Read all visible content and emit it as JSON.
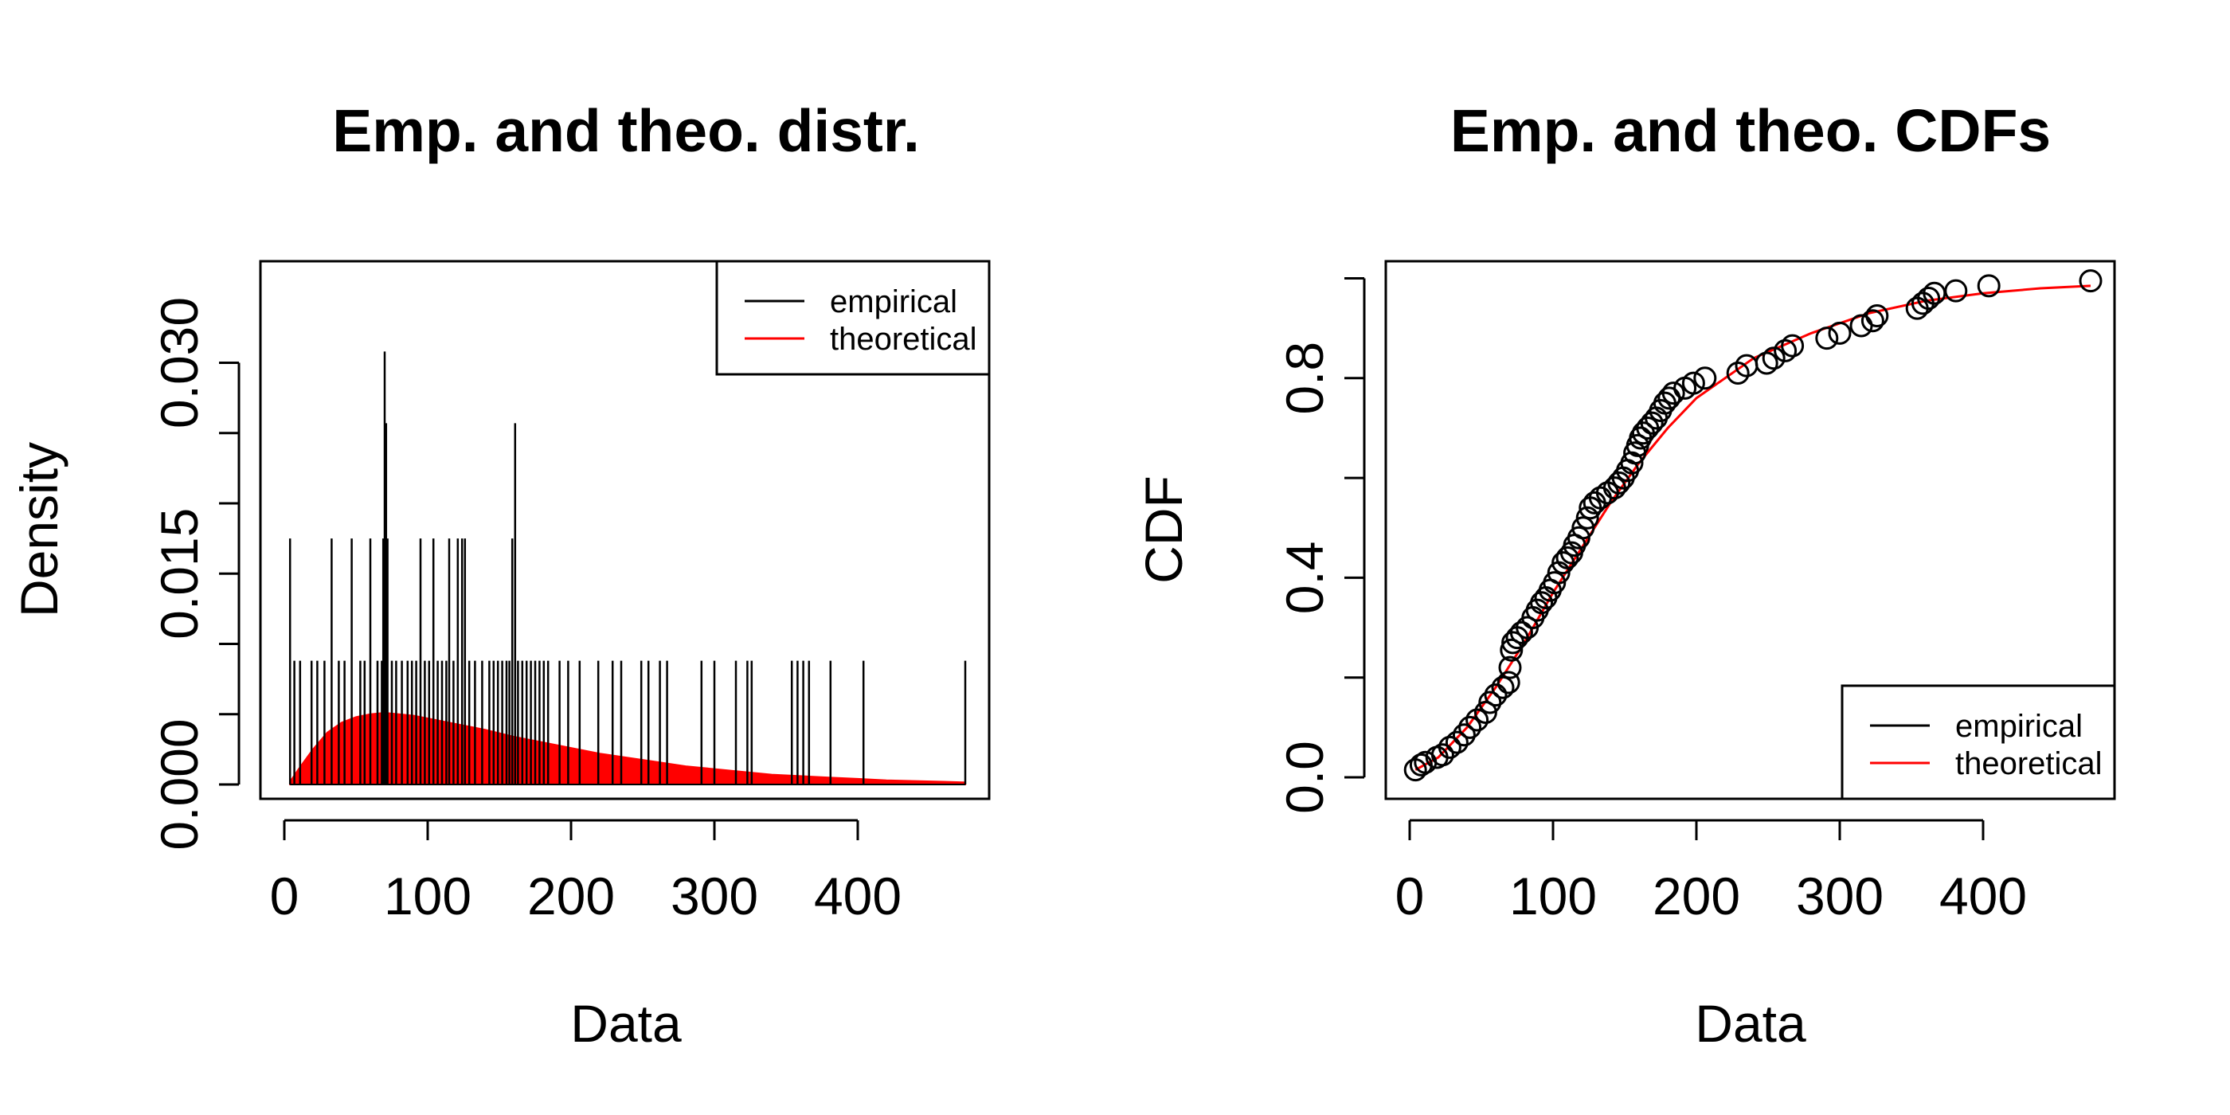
{
  "chart_data": [
    {
      "type": "histogram-density",
      "title": "Emp. and theo. distr.",
      "xlabel": "Data",
      "ylabel": "Density",
      "xlim": [
        0,
        480
      ],
      "ylim": [
        0,
        0.033
      ],
      "xticks": [
        "0",
        "100",
        "200",
        "300",
        "400"
      ],
      "xtick_values": [
        0,
        100,
        200,
        300,
        400
      ],
      "yticks": [
        "0.000",
        "0.015",
        "0.030"
      ],
      "ytick_values": [
        0,
        0.015,
        0.03
      ],
      "grid": false,
      "legend": {
        "position": "top-right",
        "entries": [
          "empirical",
          "theoretical"
        ]
      },
      "colors": {
        "empirical": "#000000",
        "theoretical": "#ff0000"
      },
      "empirical_spikes": [
        {
          "x": 4,
          "density": 0.0175
        },
        {
          "x": 7,
          "density": 0.0088
        },
        {
          "x": 11,
          "density": 0.0088
        },
        {
          "x": 19,
          "density": 0.0088
        },
        {
          "x": 23,
          "density": 0.0088
        },
        {
          "x": 28,
          "density": 0.0088
        },
        {
          "x": 33,
          "density": 0.0175
        },
        {
          "x": 38,
          "density": 0.0088
        },
        {
          "x": 42,
          "density": 0.0088
        },
        {
          "x": 47,
          "density": 0.0175
        },
        {
          "x": 53,
          "density": 0.0088
        },
        {
          "x": 56,
          "density": 0.0088
        },
        {
          "x": 60,
          "density": 0.0175
        },
        {
          "x": 65,
          "density": 0.0088
        },
        {
          "x": 68,
          "density": 0.0088
        },
        {
          "x": 69,
          "density": 0.0175
        },
        {
          "x": 70,
          "density": 0.0308
        },
        {
          "x": 71,
          "density": 0.0257
        },
        {
          "x": 72,
          "density": 0.0175
        },
        {
          "x": 75,
          "density": 0.0088
        },
        {
          "x": 78,
          "density": 0.0088
        },
        {
          "x": 82,
          "density": 0.0088
        },
        {
          "x": 86,
          "density": 0.0088
        },
        {
          "x": 89,
          "density": 0.0088
        },
        {
          "x": 92,
          "density": 0.0088
        },
        {
          "x": 95,
          "density": 0.0175
        },
        {
          "x": 98,
          "density": 0.0088
        },
        {
          "x": 101,
          "density": 0.0088
        },
        {
          "x": 104,
          "density": 0.0175
        },
        {
          "x": 107,
          "density": 0.0088
        },
        {
          "x": 110,
          "density": 0.0088
        },
        {
          "x": 113,
          "density": 0.0088
        },
        {
          "x": 115,
          "density": 0.0175
        },
        {
          "x": 118,
          "density": 0.0088
        },
        {
          "x": 121,
          "density": 0.0175
        },
        {
          "x": 124,
          "density": 0.0175
        },
        {
          "x": 126,
          "density": 0.0175
        },
        {
          "x": 129,
          "density": 0.0088
        },
        {
          "x": 133,
          "density": 0.0088
        },
        {
          "x": 138,
          "density": 0.0088
        },
        {
          "x": 143,
          "density": 0.0088
        },
        {
          "x": 146,
          "density": 0.0088
        },
        {
          "x": 149,
          "density": 0.0088
        },
        {
          "x": 152,
          "density": 0.0088
        },
        {
          "x": 155,
          "density": 0.0088
        },
        {
          "x": 157,
          "density": 0.0088
        },
        {
          "x": 159,
          "density": 0.0175
        },
        {
          "x": 161,
          "density": 0.0257
        },
        {
          "x": 163,
          "density": 0.0088
        },
        {
          "x": 166,
          "density": 0.0088
        },
        {
          "x": 169,
          "density": 0.0088
        },
        {
          "x": 172,
          "density": 0.0088
        },
        {
          "x": 175,
          "density": 0.0088
        },
        {
          "x": 178,
          "density": 0.0088
        },
        {
          "x": 181,
          "density": 0.0088
        },
        {
          "x": 184,
          "density": 0.0088
        },
        {
          "x": 192,
          "density": 0.0088
        },
        {
          "x": 198,
          "density": 0.0088
        },
        {
          "x": 206,
          "density": 0.0088
        },
        {
          "x": 219,
          "density": 0.0088
        },
        {
          "x": 229,
          "density": 0.0088
        },
        {
          "x": 235,
          "density": 0.0088
        },
        {
          "x": 249,
          "density": 0.0088
        },
        {
          "x": 254,
          "density": 0.0088
        },
        {
          "x": 262,
          "density": 0.0088
        },
        {
          "x": 267,
          "density": 0.0088
        },
        {
          "x": 291,
          "density": 0.0088
        },
        {
          "x": 300,
          "density": 0.0088
        },
        {
          "x": 315,
          "density": 0.0088
        },
        {
          "x": 323,
          "density": 0.0088
        },
        {
          "x": 326,
          "density": 0.0088
        },
        {
          "x": 354,
          "density": 0.0088
        },
        {
          "x": 358,
          "density": 0.0088
        },
        {
          "x": 362,
          "density": 0.0088
        },
        {
          "x": 366,
          "density": 0.0088
        },
        {
          "x": 381,
          "density": 0.0088
        },
        {
          "x": 404,
          "density": 0.0088
        },
        {
          "x": 475,
          "density": 0.0088
        }
      ],
      "theoretical_density": {
        "x": [
          4,
          10,
          20,
          30,
          40,
          50,
          60,
          70,
          80,
          90,
          100,
          120,
          140,
          160,
          180,
          200,
          220,
          240,
          260,
          280,
          300,
          320,
          340,
          360,
          380,
          400,
          420,
          440,
          460,
          475
        ],
        "density": [
          0.0002,
          0.0011,
          0.0025,
          0.0037,
          0.0044,
          0.0048,
          0.005,
          0.0051,
          0.005,
          0.0049,
          0.0047,
          0.0043,
          0.0039,
          0.0034,
          0.003,
          0.0026,
          0.0022,
          0.0019,
          0.0016,
          0.0013,
          0.0011,
          0.0009,
          0.0007,
          0.0006,
          0.0005,
          0.0004,
          0.0003,
          0.00025,
          0.0002,
          0.00015
        ]
      }
    },
    {
      "type": "scatter-line",
      "title": "Emp. and theo. CDFs",
      "xlabel": "Data",
      "ylabel": "CDF",
      "xlim": [
        0,
        480
      ],
      "ylim": [
        0,
        1
      ],
      "xticks": [
        "0",
        "100",
        "200",
        "300",
        "400"
      ],
      "xtick_values": [
        0,
        100,
        200,
        300,
        400
      ],
      "yticks": [
        "0.0",
        "0.4",
        "0.8"
      ],
      "ytick_values": [
        0,
        0.4,
        0.8
      ],
      "grid": false,
      "legend": {
        "position": "bottom-right",
        "entries": [
          "empirical",
          "theoretical"
        ]
      },
      "colors": {
        "empirical": "#000000",
        "theoretical": "#ff0000"
      },
      "empirical_points": {
        "x": [
          4,
          8,
          11,
          19,
          23,
          28,
          33,
          38,
          42,
          47,
          53,
          56,
          60,
          65,
          69,
          70,
          71,
          72,
          75,
          78,
          82,
          86,
          89,
          92,
          95,
          98,
          101,
          104,
          107,
          110,
          113,
          115,
          118,
          121,
          124,
          126,
          129,
          133,
          138,
          143,
          146,
          149,
          152,
          155,
          157,
          159,
          161,
          163,
          166,
          169,
          172,
          175,
          178,
          181,
          184,
          192,
          198,
          206,
          229,
          235,
          249,
          254,
          262,
          267,
          291,
          300,
          315,
          323,
          326,
          354,
          358,
          362,
          366,
          381,
          404,
          475
        ],
        "y": [
          0.015,
          0.025,
          0.03,
          0.04,
          0.045,
          0.06,
          0.07,
          0.085,
          0.1,
          0.115,
          0.13,
          0.15,
          0.165,
          0.18,
          0.19,
          0.22,
          0.255,
          0.27,
          0.28,
          0.29,
          0.3,
          0.32,
          0.335,
          0.35,
          0.36,
          0.375,
          0.39,
          0.41,
          0.43,
          0.44,
          0.45,
          0.465,
          0.48,
          0.5,
          0.52,
          0.54,
          0.55,
          0.56,
          0.57,
          0.58,
          0.59,
          0.6,
          0.615,
          0.63,
          0.65,
          0.665,
          0.68,
          0.69,
          0.7,
          0.71,
          0.72,
          0.735,
          0.75,
          0.76,
          0.77,
          0.78,
          0.79,
          0.8,
          0.81,
          0.825,
          0.83,
          0.84,
          0.855,
          0.865,
          0.88,
          0.89,
          0.905,
          0.915,
          0.925,
          0.94,
          0.95,
          0.96,
          0.97,
          0.975,
          0.985,
          0.995
        ]
      },
      "theoretical_cdf": {
        "x": [
          4,
          20,
          40,
          60,
          80,
          100,
          120,
          140,
          160,
          180,
          200,
          240,
          280,
          320,
          360,
          400,
          440,
          475
        ],
        "y": [
          0.015,
          0.04,
          0.1,
          0.18,
          0.27,
          0.37,
          0.46,
          0.55,
          0.63,
          0.7,
          0.76,
          0.84,
          0.89,
          0.93,
          0.955,
          0.97,
          0.98,
          0.985
        ]
      }
    }
  ]
}
